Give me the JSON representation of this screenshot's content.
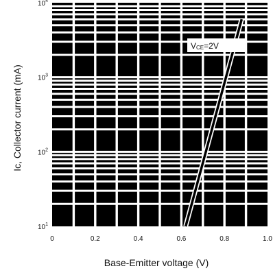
{
  "chart_data": {
    "type": "line",
    "title": "",
    "xlabel": "Base-Emitter voltage (V)",
    "ylabel": "Ic, Collector current  (mA)",
    "xlim": [
      0,
      1.0
    ],
    "ylim": [
      10,
      10000
    ],
    "yscale": "log",
    "grid": true,
    "x_ticks": [
      "0",
      "0.2",
      "0.4",
      "0.6",
      "0.8",
      "1.0"
    ],
    "y_ticks": [
      {
        "base": "10",
        "exp": "1"
      },
      {
        "base": "10",
        "exp": "2"
      },
      {
        "base": "10",
        "exp": "3"
      },
      {
        "base": "10",
        "exp": "4"
      }
    ],
    "series": [
      {
        "x": [
          0.62,
          0.88
        ],
        "y": [
          10,
          6000
        ]
      }
    ],
    "annotation": {
      "text": "VCE=2V",
      "main": "V",
      "sub": "CE",
      "rest": "=2V"
    }
  }
}
